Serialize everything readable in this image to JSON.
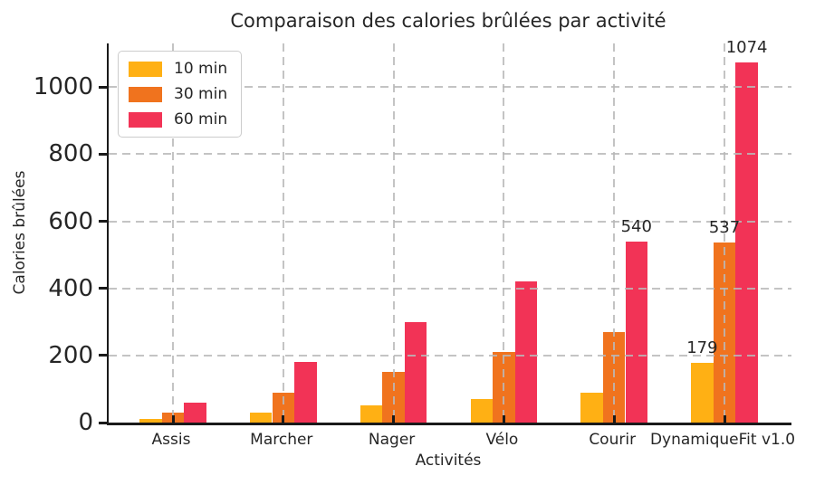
{
  "chart_data": {
    "type": "bar",
    "title": "Comparaison des calories brûlées par activité",
    "xlabel": "Activités",
    "ylabel": "Calories brûlées",
    "categories": [
      "Assis",
      "Marcher",
      "Nager",
      "Vélo",
      "Courir",
      "DynamiqueFit v1.0"
    ],
    "series": [
      {
        "name": "10 min",
        "color": "#FFB014",
        "values": [
          10,
          30,
          50,
          70,
          90,
          179
        ],
        "labels": [
          null,
          null,
          null,
          null,
          null,
          "179"
        ]
      },
      {
        "name": "30 min",
        "color": "#F0731E",
        "values": [
          30,
          90,
          150,
          210,
          270,
          537
        ],
        "labels": [
          null,
          null,
          null,
          null,
          null,
          "537"
        ]
      },
      {
        "name": "60 min",
        "color": "#F23356",
        "values": [
          60,
          180,
          300,
          420,
          540,
          1074
        ],
        "labels": [
          null,
          null,
          null,
          null,
          "540",
          "1074"
        ]
      }
    ],
    "yticks": [
      0,
      200,
      400,
      600,
      800,
      1000
    ],
    "ylim": [
      0,
      1130
    ],
    "grid": {
      "style": "dashed",
      "horizontal": true,
      "vertical": true,
      "above_bars": true
    },
    "legend": {
      "position": "upper-left",
      "entries": [
        "10 min",
        "30 min",
        "60 min"
      ]
    }
  },
  "colors": {
    "text": "#262626",
    "spine": "#1a1a1a",
    "background": "#ffffff"
  }
}
